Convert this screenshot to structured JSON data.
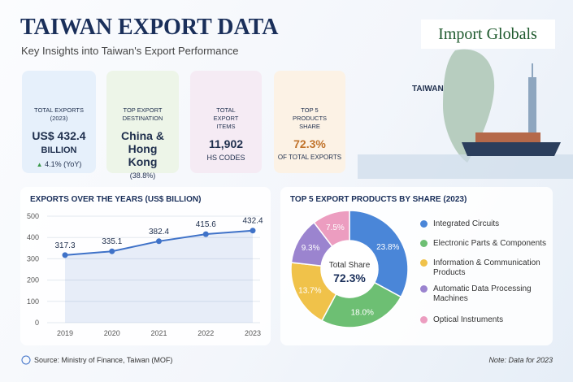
{
  "header": {
    "title": "TAIWAN EXPORT DATA",
    "subtitle": "Key Insights into Taiwan's Export Performance",
    "logo": "Import Globals"
  },
  "cards": [
    {
      "label": "TOTAL EXPORTS (2023)",
      "value": "US$ 432.4",
      "unit": "BILLION",
      "change": "4.1%",
      "change_note": "(YoY)"
    },
    {
      "label": "TOP EXPORT DESTINATION",
      "value": "China & Hong Kong",
      "note": "(38.8%)"
    },
    {
      "label": "TOTAL EXPORT ITEMS",
      "value": "11,902",
      "note": "HS CODES"
    },
    {
      "label": "TOP 5 PRODUCTS SHARE",
      "value": "72.3%",
      "note": "OF TOTAL EXPORTS"
    }
  ],
  "map_label": "TAIWAN",
  "chart_data": [
    {
      "type": "line",
      "title": "EXPORTS OVER THE YEARS (US$ BILLION)",
      "categories": [
        "2019",
        "2020",
        "2021",
        "2022",
        "2023"
      ],
      "values": [
        317.3,
        335.1,
        382.4,
        415.6,
        432.4
      ],
      "color": "#3f72c8",
      "ylim": [
        0,
        500
      ],
      "yticks": [
        0,
        100,
        200,
        300,
        400,
        500
      ],
      "grid": true
    },
    {
      "type": "pie",
      "title": "TOP 5 EXPORT PRODUCTS BY SHARE (2023)",
      "categories": [
        "Integrated Circuits",
        "Electronic Parts & Components",
        "Information & Communication Products",
        "Automatic Data Processing Machines",
        "Optical Instruments"
      ],
      "values": [
        23.8,
        18.0,
        13.7,
        9.3,
        7.5
      ],
      "value_labels": [
        "23.8%",
        "18.0%",
        "13.7%",
        "9.3%",
        "7.5%"
      ],
      "colors": [
        "#4a86d8",
        "#6dbf73",
        "#f0c24a",
        "#9b84cf",
        "#ec9dc0"
      ],
      "center_label": "Total Share",
      "center_value": "72.3%"
    }
  ],
  "footer": {
    "source": "Source: Ministry of Finance, Taiwan (MOF)",
    "note": "Note: Data for 2023"
  }
}
